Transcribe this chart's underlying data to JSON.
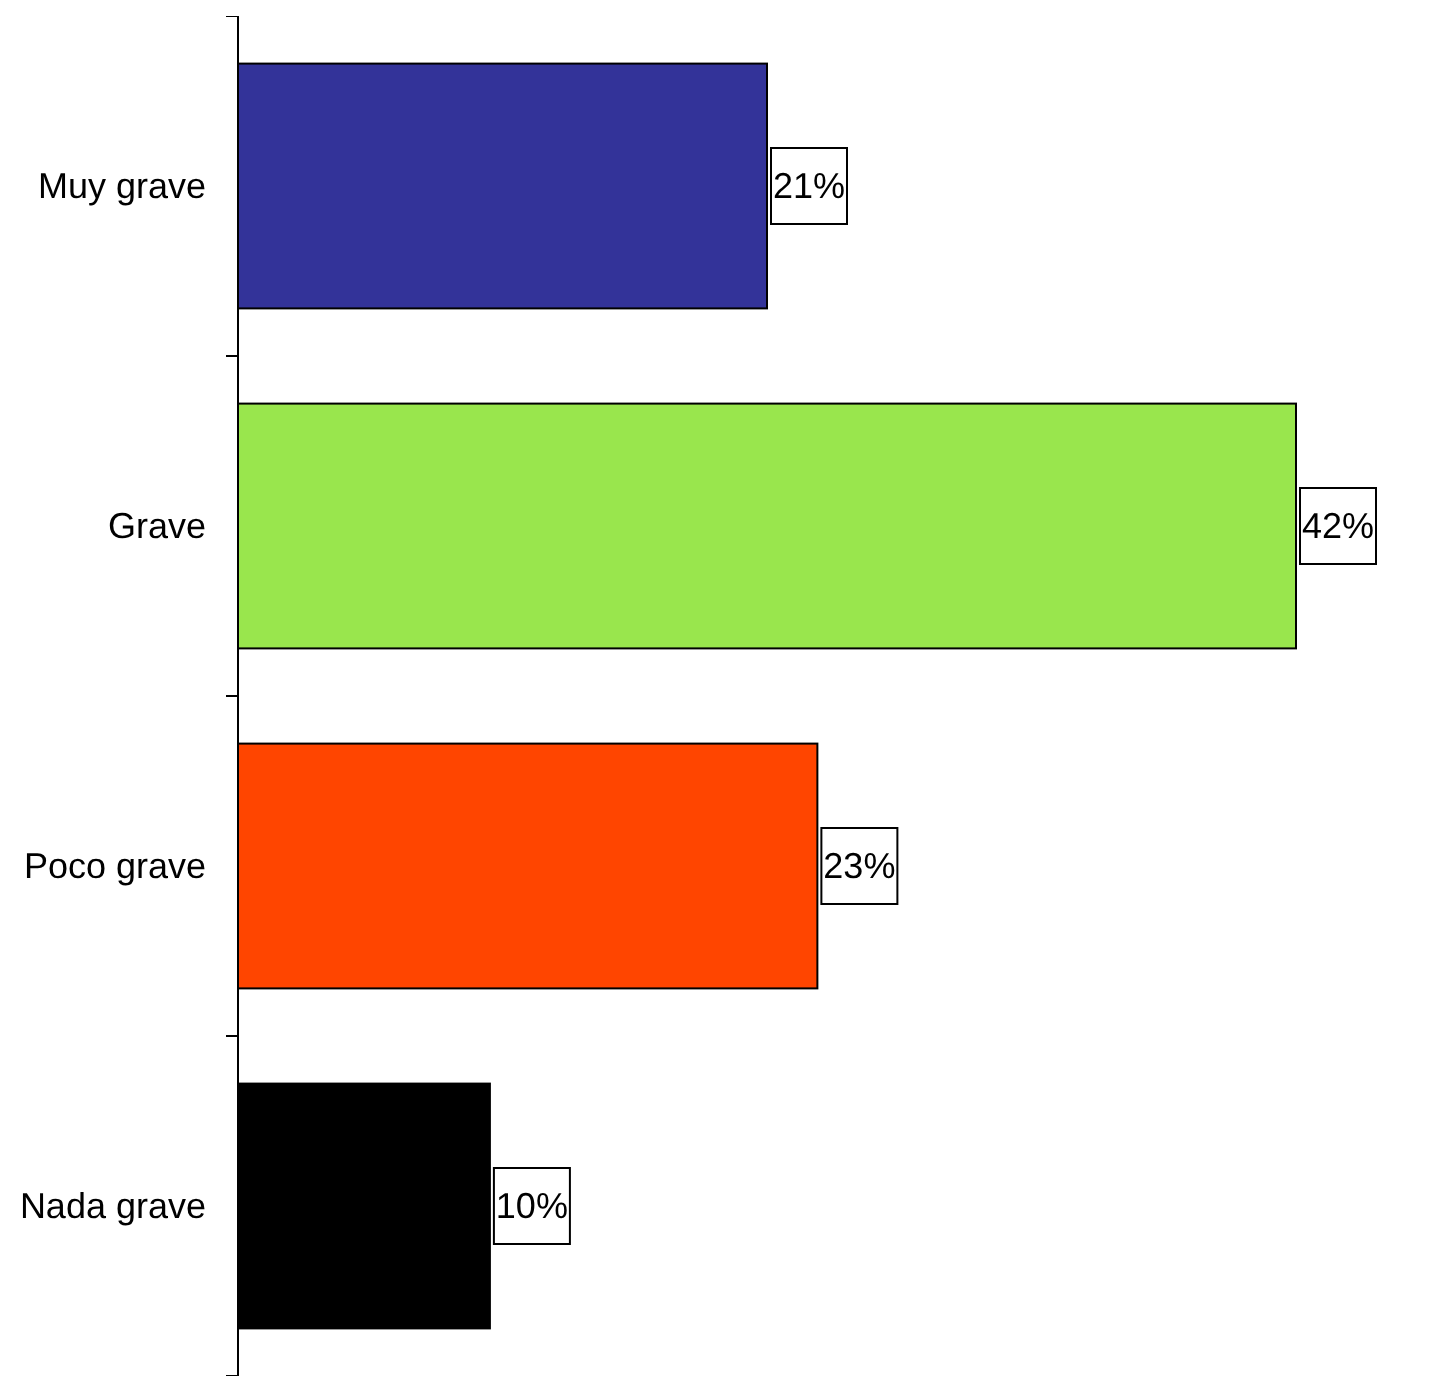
{
  "chart_data": {
    "type": "bar",
    "orientation": "horizontal",
    "categories": [
      "Muy grave",
      "Grave",
      "Poco grave",
      "Nada grave"
    ],
    "values": [
      21,
      42,
      23,
      10
    ],
    "colors": [
      "#333399",
      "#99e64d",
      "#ff4500",
      "#000000"
    ],
    "value_labels": [
      "21%",
      "42%",
      "23%",
      "10%"
    ]
  }
}
